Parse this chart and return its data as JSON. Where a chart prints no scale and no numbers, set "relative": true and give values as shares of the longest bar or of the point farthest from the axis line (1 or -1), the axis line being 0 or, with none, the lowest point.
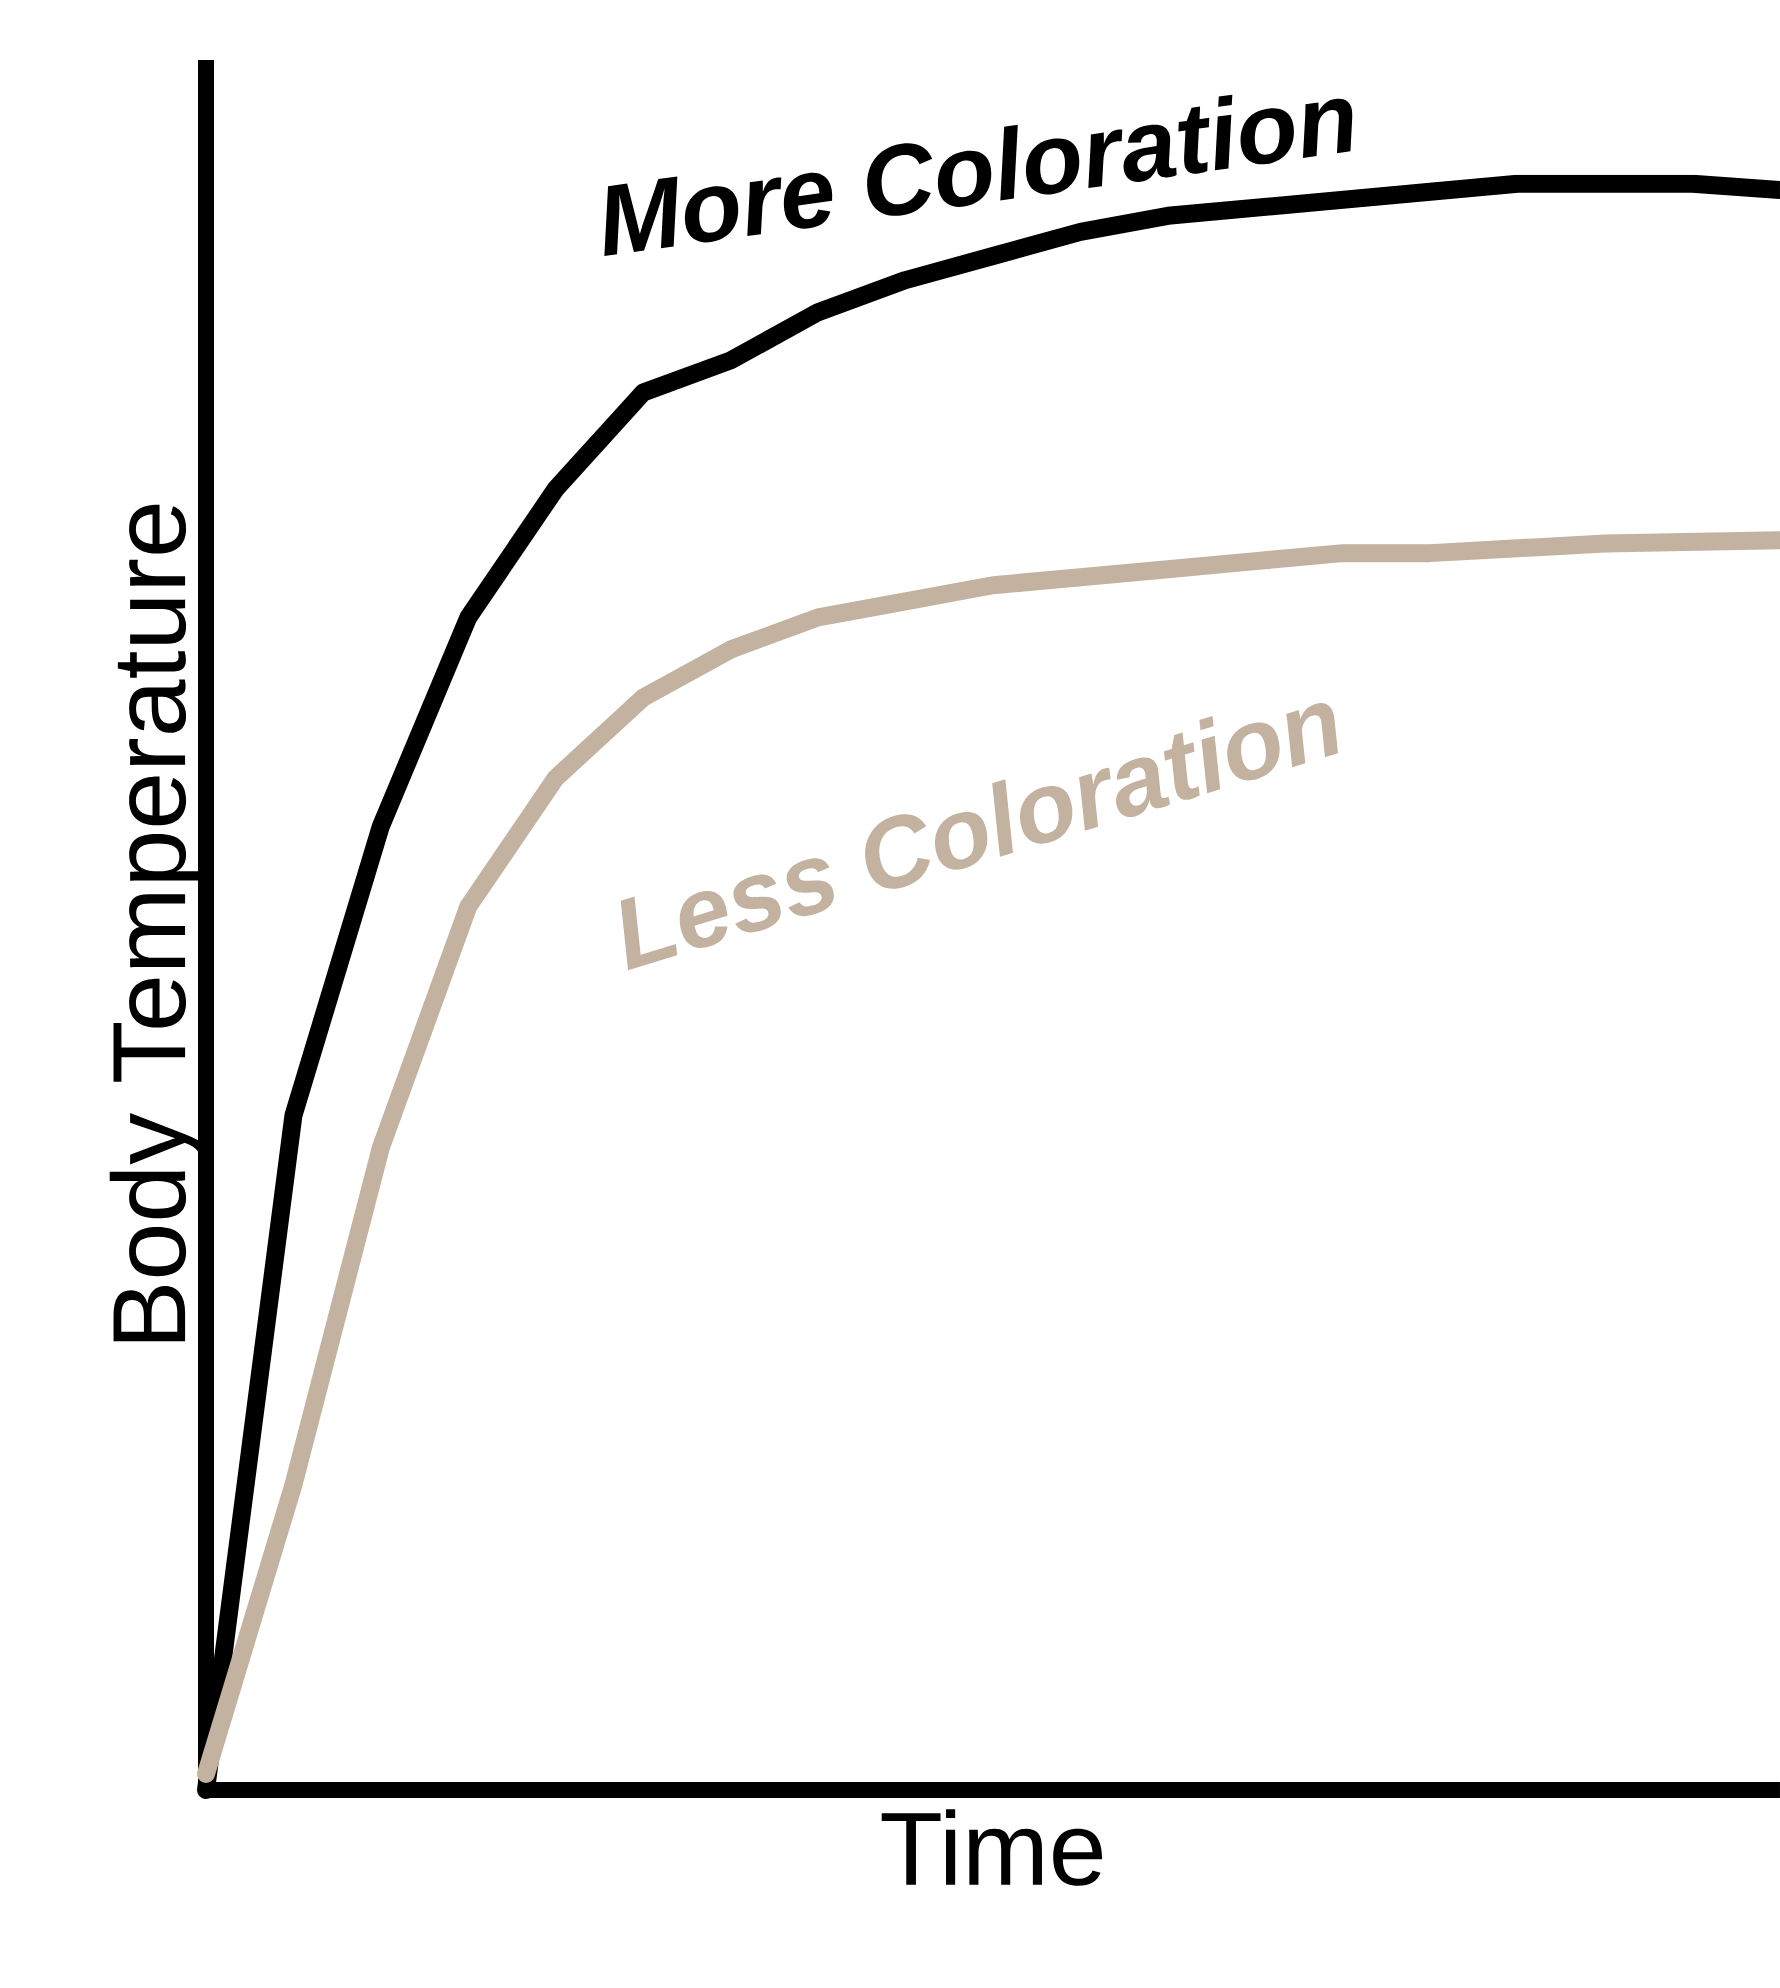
{
  "chart_data": {
    "type": "line",
    "relative": true,
    "xlabel": "Time",
    "ylabel": "Body Temperature",
    "categories": [
      null,
      null,
      null,
      null,
      null,
      null,
      null,
      null,
      null,
      null,
      null,
      null,
      null,
      null,
      null,
      null,
      null,
      null,
      null
    ],
    "series": [
      {
        "name": "More Coloration",
        "color": "#000000",
        "values": [
          0,
          0.42,
          0.6,
          0.73,
          0.81,
          0.87,
          0.89,
          0.92,
          0.94,
          0.955,
          0.97,
          0.98,
          0.985,
          0.99,
          0.995,
          1,
          1,
          1,
          0.996
        ]
      },
      {
        "name": "Less Coloration",
        "color": "#c2b29f",
        "values": [
          0.01,
          0.19,
          0.4,
          0.55,
          0.63,
          0.68,
          0.71,
          0.73,
          0.74,
          0.75,
          0.755,
          0.76,
          0.765,
          0.77,
          0.77,
          0.773,
          0.776,
          0.777,
          0.778
        ]
      }
    ]
  }
}
